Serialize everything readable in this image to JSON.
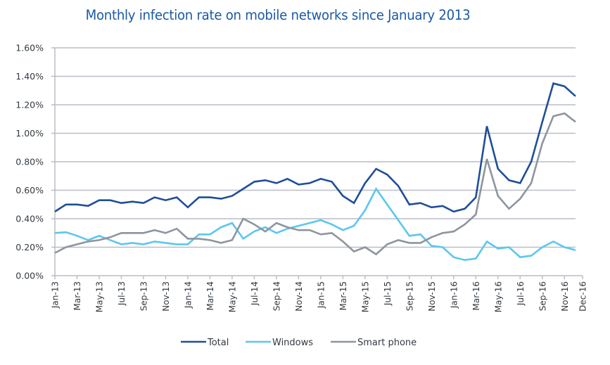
{
  "chart_data": {
    "type": "line",
    "title": "Monthly infection rate on mobile networks since January 2013",
    "xlabel": "",
    "ylabel": "",
    "ylim": [
      0,
      1.6
    ],
    "y_ticks": [
      "0.00%",
      "0.20%",
      "0.40%",
      "0.60%",
      "0.80%",
      "1.00%",
      "1.20%",
      "1.40%",
      "1.60%"
    ],
    "y_tick_values": [
      0,
      0.2,
      0.4,
      0.6,
      0.8,
      1.0,
      1.2,
      1.4,
      1.6
    ],
    "grid": true,
    "legend_position": "bottom",
    "x": [
      "Jan-13",
      "Feb-13",
      "Mar-13",
      "Apr-13",
      "May-13",
      "Jun-13",
      "Jul-13",
      "Aug-13",
      "Sep-13",
      "Oct-13",
      "Nov-13",
      "Dec-13",
      "Jan-14",
      "Feb-14",
      "Mar-14",
      "Apr-14",
      "May-14",
      "Jun-14",
      "Jul-14",
      "Aug-14",
      "Sep-14",
      "Oct-14",
      "Nov-14",
      "Dec-14",
      "Jan-15",
      "Feb-15",
      "Mar-15",
      "Apr-15",
      "May-15",
      "Jun-15",
      "Jul-15",
      "Aug-15",
      "Sep-15",
      "Oct-15",
      "Nov-15",
      "Dec-15",
      "Jan-16",
      "Feb-16",
      "Mar-16",
      "Apr-16",
      "May-16",
      "Jun-16",
      "Jul-16",
      "Aug-16",
      "Sep-16",
      "Oct-16",
      "Nov-16",
      "Dec-16"
    ],
    "x_tick_labels": [
      "Jan-13",
      "Mar-13",
      "May-13",
      "Jul-13",
      "Sep-13",
      "Nov-13",
      "Jan-14",
      "Mar-14",
      "May-14",
      "Jul-14",
      "Sep-14",
      "Nov-14",
      "Jan-15",
      "Mar-15",
      "May-15",
      "Jul-15",
      "Sep-15",
      "Nov-15",
      "Jan-16",
      "Mar-16",
      "May-16",
      "Jul-16",
      "Sep-16",
      "Nov-16",
      "Dec-16"
    ],
    "series": [
      {
        "name": "Total",
        "color": "#1F4E9A",
        "values": [
          0.45,
          0.5,
          0.5,
          0.49,
          0.53,
          0.53,
          0.51,
          0.52,
          0.51,
          0.55,
          0.53,
          0.55,
          0.48,
          0.55,
          0.55,
          0.54,
          0.56,
          0.61,
          0.66,
          0.67,
          0.65,
          0.68,
          0.64,
          0.65,
          0.68,
          0.66,
          0.56,
          0.51,
          0.65,
          0.75,
          0.71,
          0.63,
          0.5,
          0.51,
          0.48,
          0.49,
          0.45,
          0.47,
          0.55,
          1.05,
          0.75,
          0.67,
          0.65,
          0.8,
          1.08,
          1.35,
          1.33,
          1.26
        ]
      },
      {
        "name": "Windows",
        "color": "#5CC6F0",
        "values": [
          0.3,
          0.305,
          0.28,
          0.25,
          0.28,
          0.25,
          0.22,
          0.23,
          0.22,
          0.24,
          0.23,
          0.22,
          0.22,
          0.29,
          0.29,
          0.34,
          0.37,
          0.26,
          0.31,
          0.34,
          0.3,
          0.33,
          0.35,
          0.37,
          0.39,
          0.36,
          0.32,
          0.35,
          0.46,
          0.61,
          0.5,
          0.39,
          0.28,
          0.29,
          0.21,
          0.2,
          0.13,
          0.11,
          0.12,
          0.24,
          0.19,
          0.2,
          0.13,
          0.14,
          0.2,
          0.24,
          0.2,
          0.18
        ]
      },
      {
        "name": "Smart phone",
        "color": "#8E959E",
        "values": [
          0.16,
          0.2,
          0.22,
          0.24,
          0.25,
          0.27,
          0.3,
          0.3,
          0.3,
          0.32,
          0.3,
          0.33,
          0.26,
          0.26,
          0.25,
          0.23,
          0.25,
          0.4,
          0.36,
          0.31,
          0.37,
          0.34,
          0.32,
          0.32,
          0.29,
          0.3,
          0.24,
          0.17,
          0.2,
          0.15,
          0.22,
          0.25,
          0.23,
          0.23,
          0.27,
          0.3,
          0.31,
          0.36,
          0.43,
          0.82,
          0.56,
          0.47,
          0.54,
          0.65,
          0.93,
          1.12,
          1.14,
          1.08
        ]
      }
    ]
  }
}
